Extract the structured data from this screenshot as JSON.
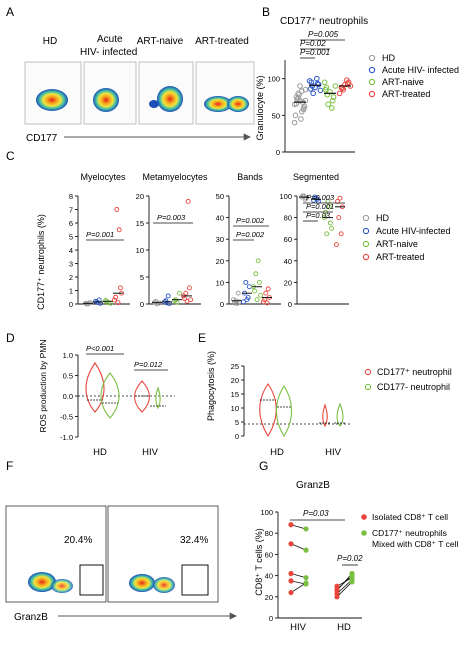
{
  "colors": {
    "hd": "#9a9a9a",
    "acute": "#2b56c4",
    "naive": "#7bc043",
    "treated": "#e8453c",
    "flow_bg": "#fbfbfb"
  },
  "panel_a": {
    "letter": "A",
    "groups": [
      "HD",
      "Acute HIV- infected",
      "ART-naive",
      "ART-treated"
    ],
    "group_lines": [
      [
        "HD"
      ],
      [
        "Acute",
        "HIV- infected"
      ],
      [
        "ART-naive"
      ],
      [
        "ART-treated"
      ]
    ],
    "axis_label": "CD177"
  },
  "panel_b": {
    "letter": "B",
    "title": "CD177⁺ neutrophils",
    "ylabel": "Granulocyte (%)",
    "yticks": [
      "0",
      "50",
      "100"
    ],
    "pvalues": [
      "P=0.005",
      "P=0.02",
      "P=0.001"
    ],
    "legend": [
      "HD",
      "Acute HIV- infected",
      "ART-naive",
      "ART-treated"
    ],
    "chart_data": {
      "type": "scatter",
      "categories": [
        "HD",
        "Acute HIV- infected",
        "ART-naive",
        "ART-treated"
      ],
      "ylim": [
        0,
        120
      ],
      "series": [
        {
          "name": "HD",
          "values": [
            70,
            75,
            60,
            80,
            55,
            65,
            85,
            72,
            68,
            50,
            62,
            78,
            45,
            90,
            66,
            58,
            74,
            83,
            40,
            70
          ],
          "median": 68
        },
        {
          "name": "Acute HIV- infected",
          "values": [
            88,
            95,
            92,
            80,
            100,
            97,
            84,
            90,
            93,
            86
          ],
          "median": 91
        },
        {
          "name": "ART-naive",
          "values": [
            82,
            88,
            75,
            65,
            60,
            95,
            90,
            78,
            70,
            85
          ],
          "median": 80
        },
        {
          "name": "ART-treated",
          "values": [
            92,
            88,
            95,
            85,
            98,
            80,
            90,
            87,
            93
          ],
          "median": 90
        }
      ]
    }
  },
  "panel_c": {
    "letter": "C",
    "ylabel": "CD177⁺ neutrophils (%)",
    "legend": [
      "HD",
      "Acute HIV-infected",
      "ART-naive",
      "ART-treated"
    ],
    "subplots": [
      {
        "title": "Myelocytes",
        "yticks": [
          "0",
          "1",
          "2",
          "3",
          "4",
          "5",
          "6",
          "7",
          "8"
        ],
        "pvalues": [
          "P=0.001"
        ]
      },
      {
        "title": "Metamyelocytes",
        "yticks": [
          "0",
          "5",
          "10",
          "15",
          "20"
        ],
        "pvalues": [
          "P=0.003"
        ]
      },
      {
        "title": "Bands",
        "yticks": [
          "0",
          "10",
          "20",
          "30",
          "40",
          "50"
        ],
        "pvalues": [
          "P=0.002",
          "P=0.002"
        ]
      },
      {
        "title": "Segmented",
        "yticks": [
          "0",
          "20",
          "40",
          "60",
          "80",
          "100"
        ],
        "pvalues": [
          "P=0.003",
          "P=0.001",
          "P=0.03"
        ]
      }
    ],
    "chart_data": [
      {
        "type": "scatter",
        "title": "Myelocytes",
        "ylim": [
          0,
          8
        ],
        "series": [
          {
            "name": "HD",
            "values": [
              0,
              0.05,
              0.1,
              0,
              0.08
            ]
          },
          {
            "name": "Acute HIV-infected",
            "values": [
              0.1,
              0.2,
              0.05,
              0.15,
              0.3
            ]
          },
          {
            "name": "ART-naive",
            "values": [
              0.1,
              0.25,
              0.05,
              0.2
            ]
          },
          {
            "name": "ART-treated",
            "values": [
              0.1,
              0.5,
              1.2,
              7,
              5.5,
              0.3,
              0.8
            ]
          }
        ]
      },
      {
        "type": "scatter",
        "title": "Metamyelocytes",
        "ylim": [
          0,
          20
        ],
        "series": [
          {
            "name": "HD",
            "values": [
              0,
              0.3,
              0.2,
              0.5
            ]
          },
          {
            "name": "Acute HIV-infected",
            "values": [
              0.2,
              0.4,
              0.1,
              0.6,
              1.5
            ]
          },
          {
            "name": "ART-naive",
            "values": [
              0.3,
              0.6,
              2,
              0.8
            ]
          },
          {
            "name": "ART-treated",
            "values": [
              0.5,
              1,
              3,
              2,
              19,
              1.5,
              0.8
            ]
          }
        ]
      },
      {
        "type": "scatter",
        "title": "Bands",
        "ylim": [
          0,
          50
        ],
        "series": [
          {
            "name": "HD",
            "values": [
              0.2,
              0.5,
              1,
              1.5,
              5,
              2
            ]
          },
          {
            "name": "Acute HIV-infected",
            "values": [
              2,
              5,
              8,
              10,
              3,
              1
            ]
          },
          {
            "name": "ART-naive",
            "values": [
              2,
              6,
              10,
              14,
              20,
              8,
              4
            ]
          },
          {
            "name": "ART-treated",
            "values": [
              0.5,
              2,
              3,
              5,
              7,
              1
            ]
          }
        ]
      },
      {
        "type": "scatter",
        "title": "Segmented",
        "ylim": [
          0,
          110
        ],
        "series": [
          {
            "name": "HD",
            "values": [
              100,
              99,
              98,
              100,
              97
            ]
          },
          {
            "name": "Acute HIV-infected",
            "values": [
              98,
              96,
              95,
              99,
              97
            ]
          },
          {
            "name": "ART-naive",
            "values": [
              95,
              85,
              75,
              65,
              90,
              80,
              70
            ]
          },
          {
            "name": "ART-treated",
            "values": [
              98,
              95,
              90,
              80,
              65,
              55
            ]
          }
        ]
      }
    ]
  },
  "panel_d": {
    "letter": "D",
    "ylabel": "ROS production by PMN",
    "yticks": [
      "1.0",
      "0.5",
      "0.0",
      "-0.5",
      "-1.0"
    ],
    "xgroups": [
      "HD",
      "HIV"
    ],
    "pvalues": [
      "P<0.001",
      "P=0.012"
    ],
    "chart_data": {
      "type": "violin",
      "categories": [
        "HD",
        "HIV"
      ],
      "ylim": [
        -1,
        1
      ],
      "series": [
        {
          "name": "CD177⁺ neutrophil",
          "medians": [
            0.25,
            0.1
          ]
        },
        {
          "name": "CD177- neutrophil",
          "medians": [
            0.05,
            0.02
          ]
        }
      ]
    }
  },
  "panel_e": {
    "letter": "E",
    "ylabel": "Phagocytosis (%)",
    "yticks": [
      "0",
      "5",
      "10",
      "15",
      "20",
      "25"
    ],
    "xgroups": [
      "HD",
      "HIV"
    ],
    "legend": [
      "CD177⁺ neutrophil",
      "CD177- neutrophil"
    ],
    "chart_data": {
      "type": "violin",
      "categories": [
        "HD",
        "HIV"
      ],
      "ylim": [
        0,
        25
      ],
      "series": [
        {
          "name": "CD177⁺ neutrophil",
          "medians": [
            17,
            1
          ]
        },
        {
          "name": "CD177- neutrophil",
          "medians": [
            13,
            1
          ]
        }
      ]
    }
  },
  "panel_f": {
    "letter": "F",
    "gate_values": [
      "20.4%",
      "32.4%"
    ],
    "axis_label": "GranzB"
  },
  "panel_g": {
    "letter": "G",
    "title": "GranzB",
    "ylabel": "CD8⁺ T cells (%)",
    "yticks": [
      "0",
      "20",
      "40",
      "60",
      "80",
      "100"
    ],
    "xgroups": [
      "HIV",
      "HD"
    ],
    "pvalues": [
      "P=0.03",
      "P=0.02"
    ],
    "legend": [
      "Isolated CD8⁺ T cell",
      "CD177⁺ neutrophils",
      "Mixed with CD8⁺ T cell"
    ],
    "chart_data": {
      "type": "paired",
      "categories": [
        "HIV",
        "HD"
      ],
      "ylim": [
        0,
        100
      ],
      "series": [
        {
          "name": "Isolated CD8⁺ T cell",
          "HIV": [
            88,
            70,
            42,
            35,
            24
          ],
          "HD": [
            26,
            27,
            30,
            23,
            20
          ]
        },
        {
          "name": "CD177⁺ neutrophils Mixed with CD8⁺ T cell",
          "HIV": [
            84,
            64,
            38,
            32,
            33
          ],
          "HD": [
            42,
            40,
            38,
            36,
            34
          ]
        }
      ]
    }
  }
}
